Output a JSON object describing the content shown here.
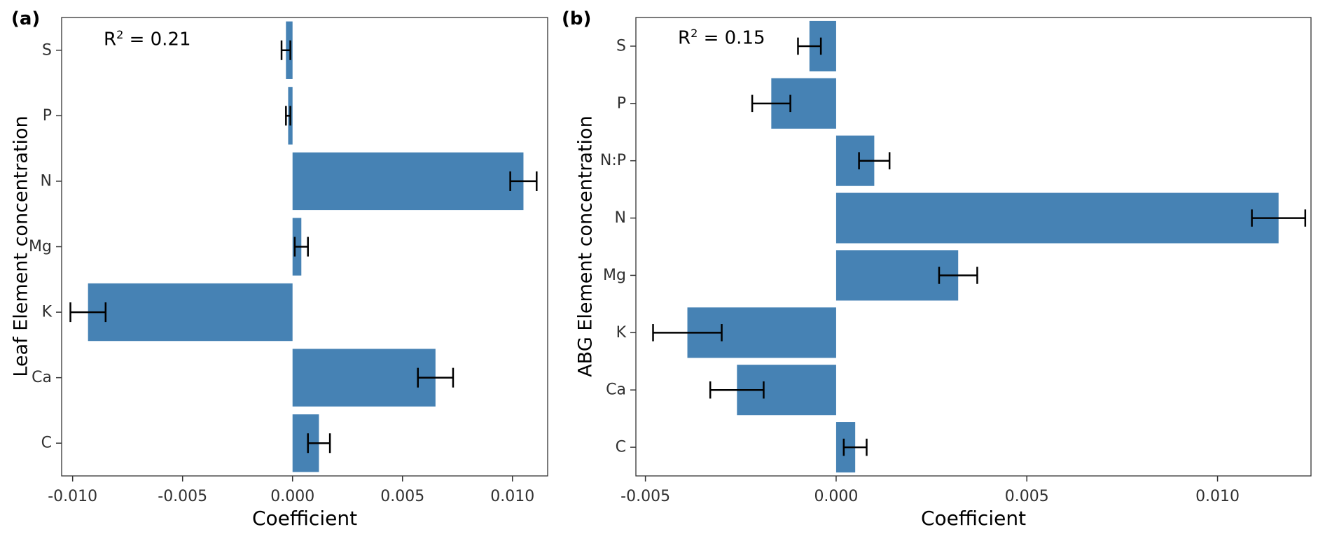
{
  "chart_data": [
    {
      "type": "bar",
      "orientation": "horizontal",
      "panel_label": "(a)",
      "annotation": {
        "base": "R",
        "sup": "2",
        "rest": " = 0.21"
      },
      "ylabel": "Leaf Element concentration",
      "xlabel": "Coefficient",
      "categories_top_to_bottom": [
        "S",
        "P",
        "N",
        "Mg",
        "K",
        "Ca",
        "C"
      ],
      "values": [
        -0.0003,
        -0.0002,
        0.0105,
        0.0004,
        -0.0093,
        0.0065,
        0.0012
      ],
      "errors": [
        0.0002,
        0.0001,
        0.0006,
        0.0003,
        0.0008,
        0.0008,
        0.0005
      ],
      "xlim": [
        -0.0105,
        0.0116
      ],
      "xticks": [
        -0.01,
        -0.005,
        0.0,
        0.005,
        0.01
      ],
      "xtick_labels": [
        "-0.010",
        "-0.005",
        "0.000",
        "0.005",
        "0.010"
      ],
      "bar_color": "#4682B4",
      "error_color": "#000000",
      "grid": false,
      "legend": "none"
    },
    {
      "type": "bar",
      "orientation": "horizontal",
      "panel_label": "(b)",
      "annotation": {
        "base": "R",
        "sup": "2",
        "rest": " = 0.15"
      },
      "ylabel": "ABG Element concentration",
      "xlabel": "Coefficient",
      "categories_top_to_bottom": [
        "S",
        "P",
        "N:P",
        "N",
        "Mg",
        "K",
        "Ca",
        "C"
      ],
      "values": [
        -0.0007,
        -0.0017,
        0.001,
        0.0116,
        0.0032,
        -0.0039,
        -0.0026,
        0.0005
      ],
      "errors": [
        0.0003,
        0.0005,
        0.0004,
        0.0007,
        0.0005,
        0.0009,
        0.0007,
        0.0003
      ],
      "xlim": [
        -0.00525,
        0.01245
      ],
      "xticks": [
        -0.005,
        0.0,
        0.005,
        0.01
      ],
      "xtick_labels": [
        "-0.005",
        "0.000",
        "0.005",
        "0.010"
      ],
      "bar_color": "#4682B4",
      "error_color": "#000000",
      "grid": false,
      "legend": "none"
    }
  ]
}
